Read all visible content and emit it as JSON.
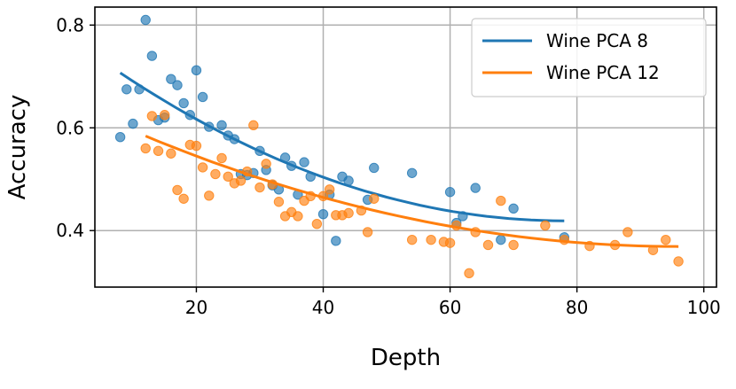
{
  "chart_data": {
    "type": "scatter",
    "xlabel": "Depth",
    "ylabel": "Accuracy",
    "xlim": [
      4,
      102
    ],
    "ylim": [
      0.29,
      0.835
    ],
    "xticks": [
      {
        "value": 20,
        "label": "20"
      },
      {
        "value": 40,
        "label": "40"
      },
      {
        "value": 60,
        "label": "60"
      },
      {
        "value": 80,
        "label": "80"
      },
      {
        "value": 100,
        "label": "100"
      }
    ],
    "yticks": [
      {
        "value": 0.4,
        "label": "0.4"
      },
      {
        "value": 0.6,
        "label": "0.6"
      },
      {
        "value": 0.8,
        "label": "0.8"
      }
    ],
    "grid": true,
    "legend_position": "top-right",
    "series": [
      {
        "name": "Wine PCA 8",
        "color": "#1f77b4",
        "points": [
          [
            8,
            0.582
          ],
          [
            9,
            0.675
          ],
          [
            10,
            0.608
          ],
          [
            11,
            0.675
          ],
          [
            12,
            0.81
          ],
          [
            13,
            0.74
          ],
          [
            14,
            0.615
          ],
          [
            15,
            0.62
          ],
          [
            16,
            0.695
          ],
          [
            17,
            0.683
          ],
          [
            18,
            0.648
          ],
          [
            19,
            0.625
          ],
          [
            20,
            0.712
          ],
          [
            21,
            0.66
          ],
          [
            22,
            0.602
          ],
          [
            24,
            0.605
          ],
          [
            25,
            0.585
          ],
          [
            26,
            0.578
          ],
          [
            27,
            0.51
          ],
          [
            28,
            0.508
          ],
          [
            29,
            0.512
          ],
          [
            30,
            0.555
          ],
          [
            31,
            0.518
          ],
          [
            32,
            0.488
          ],
          [
            33,
            0.48
          ],
          [
            34,
            0.542
          ],
          [
            35,
            0.526
          ],
          [
            36,
            0.47
          ],
          [
            37,
            0.533
          ],
          [
            38,
            0.505
          ],
          [
            40,
            0.432
          ],
          [
            41,
            0.47
          ],
          [
            42,
            0.38
          ],
          [
            43,
            0.505
          ],
          [
            44,
            0.497
          ],
          [
            47,
            0.46
          ],
          [
            48,
            0.522
          ],
          [
            54,
            0.512
          ],
          [
            60,
            0.475
          ],
          [
            61,
            0.415
          ],
          [
            62,
            0.428
          ],
          [
            64,
            0.483
          ],
          [
            68,
            0.382
          ],
          [
            70,
            0.443
          ],
          [
            78,
            0.387
          ]
        ],
        "trend": [
          [
            8,
            0.707
          ],
          [
            78,
            0.419
          ]
        ]
      },
      {
        "name": "Wine PCA 12",
        "color": "#ff7f0e",
        "points": [
          [
            12,
            0.56
          ],
          [
            13,
            0.623
          ],
          [
            14,
            0.555
          ],
          [
            15,
            0.625
          ],
          [
            16,
            0.55
          ],
          [
            17,
            0.479
          ],
          [
            18,
            0.462
          ],
          [
            19,
            0.567
          ],
          [
            20,
            0.565
          ],
          [
            21,
            0.523
          ],
          [
            22,
            0.468
          ],
          [
            23,
            0.51
          ],
          [
            24,
            0.541
          ],
          [
            25,
            0.505
          ],
          [
            26,
            0.492
          ],
          [
            27,
            0.497
          ],
          [
            28,
            0.515
          ],
          [
            29,
            0.605
          ],
          [
            30,
            0.484
          ],
          [
            31,
            0.53
          ],
          [
            32,
            0.49
          ],
          [
            33,
            0.456
          ],
          [
            34,
            0.428
          ],
          [
            35,
            0.436
          ],
          [
            36,
            0.428
          ],
          [
            37,
            0.458
          ],
          [
            38,
            0.467
          ],
          [
            39,
            0.413
          ],
          [
            40,
            0.467
          ],
          [
            41,
            0.48
          ],
          [
            42,
            0.43
          ],
          [
            43,
            0.43
          ],
          [
            44,
            0.434
          ],
          [
            46,
            0.439
          ],
          [
            47,
            0.397
          ],
          [
            48,
            0.462
          ],
          [
            54,
            0.382
          ],
          [
            57,
            0.382
          ],
          [
            59,
            0.378
          ],
          [
            60,
            0.376
          ],
          [
            61,
            0.41
          ],
          [
            63,
            0.317
          ],
          [
            64,
            0.397
          ],
          [
            66,
            0.372
          ],
          [
            68,
            0.458
          ],
          [
            70,
            0.372
          ],
          [
            75,
            0.41
          ],
          [
            78,
            0.382
          ],
          [
            82,
            0.37
          ],
          [
            86,
            0.372
          ],
          [
            88,
            0.397
          ],
          [
            92,
            0.362
          ],
          [
            94,
            0.382
          ],
          [
            96,
            0.34
          ]
        ],
        "trend": [
          [
            12,
            0.584
          ],
          [
            96,
            0.369
          ]
        ]
      }
    ]
  }
}
